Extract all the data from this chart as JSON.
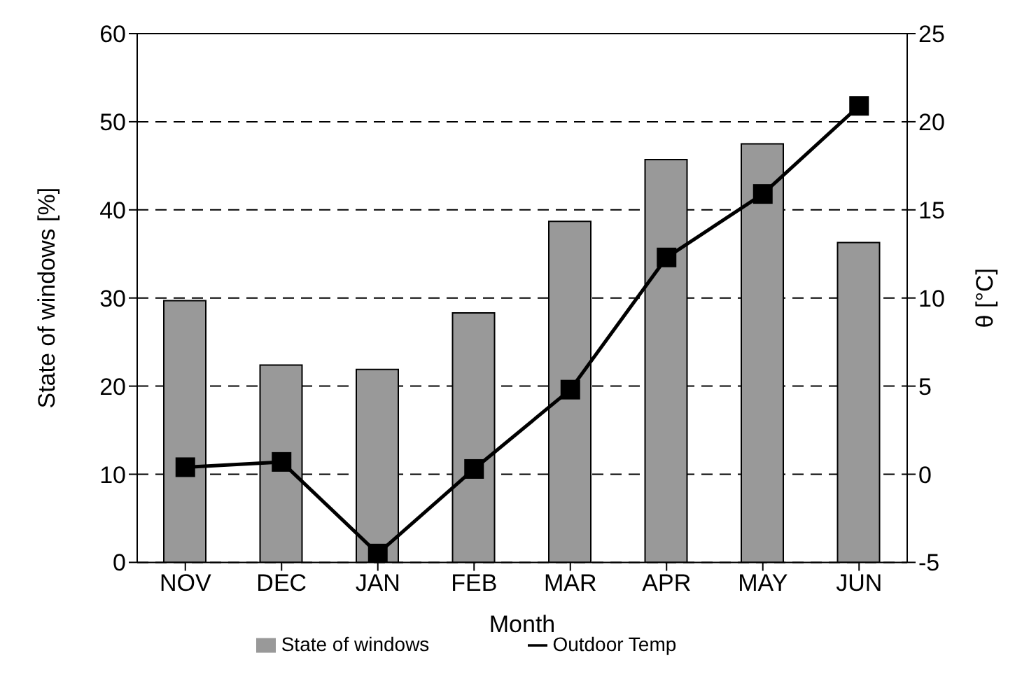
{
  "chart_data": {
    "type": "bar",
    "xlabel": "Month",
    "ylabel": "State of windows [%]",
    "y2label": "θ [°C]",
    "categories": [
      "NOV",
      "DEC",
      "JAN",
      "FEB",
      "MAR",
      "APR",
      "MAY",
      "JUN"
    ],
    "series": [
      {
        "name": "State of windows",
        "color": "#999999",
        "values": [
          29.7,
          22.4,
          21.9,
          28.3,
          38.7,
          45.7,
          47.5,
          36.3
        ]
      },
      {
        "name": "Outdoor Temp",
        "type": "line",
        "axis": "y2",
        "color": "#000000",
        "marker": "square",
        "values": [
          0.4,
          0.7,
          -4.5,
          0.3,
          4.8,
          12.3,
          15.9,
          20.9
        ]
      }
    ],
    "ylim": [
      0,
      60
    ],
    "yticks": [
      0,
      10,
      20,
      30,
      40,
      50,
      60
    ],
    "y2lim": [
      -5,
      25
    ],
    "y2ticks": [
      -5,
      0,
      5,
      10,
      15,
      20,
      25
    ],
    "grid": "y",
    "legend": "bottom",
    "line_style": "solid"
  }
}
